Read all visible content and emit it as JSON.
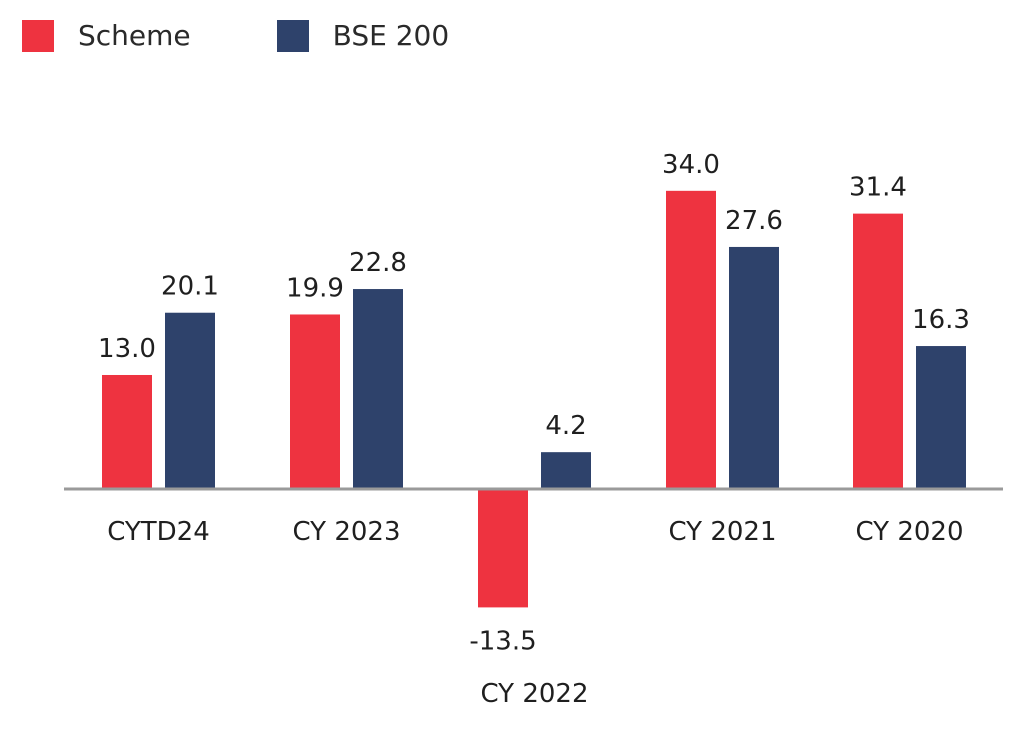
{
  "chart_data": {
    "type": "bar",
    "categories": [
      "CYTD24",
      "CY 2023",
      "CY 2022",
      "CY 2021",
      "CY 2020"
    ],
    "series": [
      {
        "name": "Scheme",
        "values": [
          13.0,
          19.9,
          -13.5,
          34.0,
          31.4
        ],
        "color": "#ee3340"
      },
      {
        "name": "BSE 200",
        "values": [
          20.1,
          22.8,
          4.2,
          27.6,
          16.3
        ],
        "color": "#2e426b"
      }
    ],
    "data_labels": [
      [
        "13.0",
        "19.9",
        "-13.5",
        "34.0",
        "31.4"
      ],
      [
        "20.1",
        "22.8",
        "4.2",
        "27.6",
        "16.3"
      ]
    ],
    "legend_position": "top-left",
    "grid": false,
    "axis_color": "#9a9a9a",
    "ylim": [
      -14,
      34
    ]
  }
}
